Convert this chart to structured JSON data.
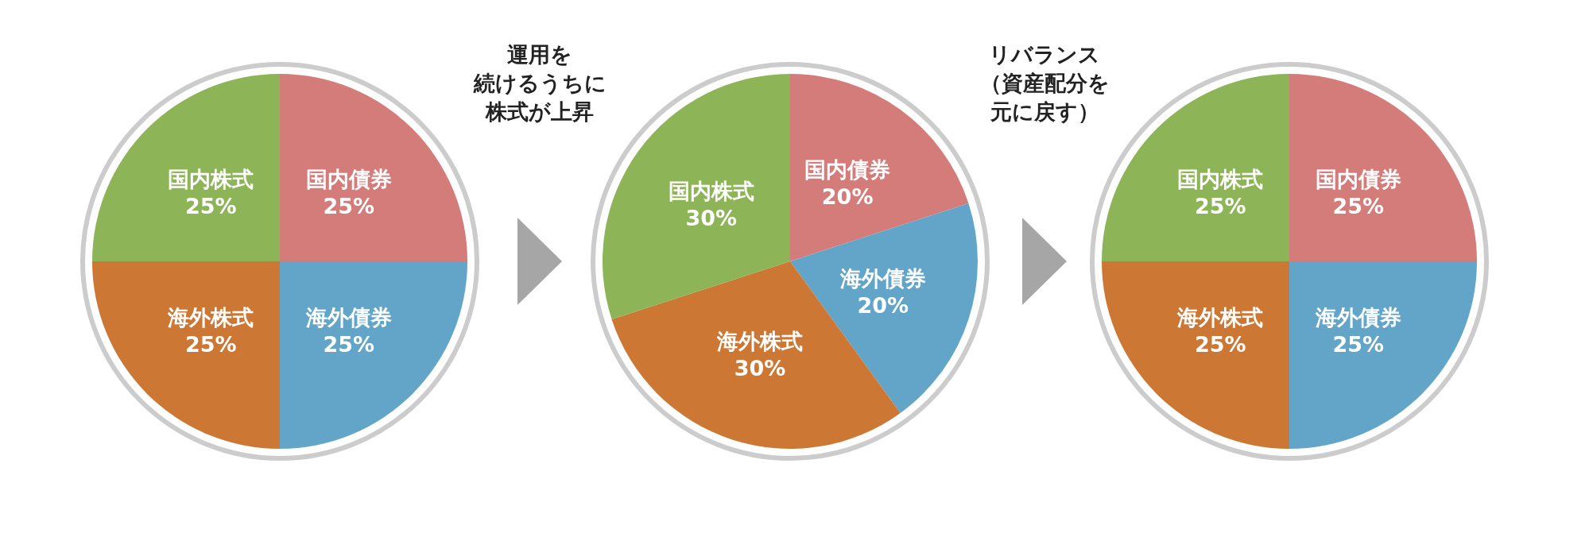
{
  "chart_data": [
    {
      "type": "pie",
      "categories": [
        "国内債券",
        "海外債券",
        "海外株式",
        "国内株式"
      ],
      "values": [
        25,
        25,
        25,
        25
      ],
      "colors": [
        "#d47c7a",
        "#62a5c9",
        "#cc7733",
        "#8db456"
      ],
      "value_labels": [
        "25%",
        "25%",
        "25%",
        "25%"
      ],
      "annotations": [
        "運用を",
        "続けるうちに",
        "株式が上昇"
      ]
    },
    {
      "type": "pie",
      "categories": [
        "国内債券",
        "海外債券",
        "海外株式",
        "国内株式"
      ],
      "values": [
        20,
        20,
        30,
        30
      ],
      "colors": [
        "#d47c7a",
        "#62a5c9",
        "#cc7733",
        "#8db456"
      ],
      "value_labels": [
        "20%",
        "20%",
        "30%",
        "30%"
      ],
      "annotations": [
        "リバランス",
        "（資産配分を",
        "元に戻す）"
      ]
    },
    {
      "type": "pie",
      "categories": [
        "国内債券",
        "海外債券",
        "海外株式",
        "国内株式"
      ],
      "values": [
        25,
        25,
        25,
        25
      ],
      "colors": [
        "#d47c7a",
        "#62a5c9",
        "#cc7733",
        "#8db456"
      ],
      "value_labels": [
        "25%",
        "25%",
        "25%",
        "25%"
      ]
    }
  ]
}
